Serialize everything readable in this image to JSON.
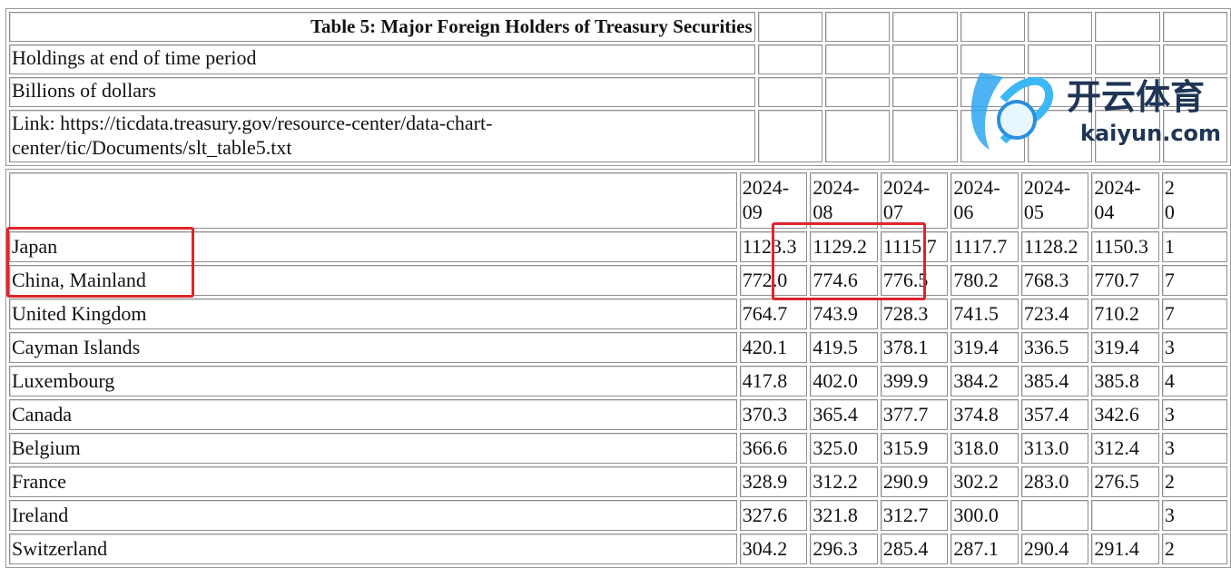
{
  "title": "Table 5: Major Foreign Holders of Treasury Securities",
  "meta": [
    "Holdings at end of time period",
    "Billions of dollars",
    "Link: https://ticdata.treasury.gov/resource-center/data-chart-center/tic/Documents/slt_table5.txt"
  ],
  "columns": [
    "2024-09",
    "2024-08",
    "2024-07",
    "2024-06",
    "2024-05",
    "2024-04",
    "20"
  ],
  "rows": [
    {
      "country": "Japan",
      "values": [
        "1123.3",
        "1129.2",
        "1115.7",
        "1117.7",
        "1128.2",
        "1150.3",
        "1"
      ]
    },
    {
      "country": "China, Mainland",
      "values": [
        "772.0",
        "774.6",
        "776.5",
        "780.2",
        "768.3",
        "770.7",
        "7"
      ]
    },
    {
      "country": "United Kingdom",
      "values": [
        "764.7",
        "743.9",
        "728.3",
        "741.5",
        "723.4",
        "710.2",
        "7"
      ]
    },
    {
      "country": "Cayman Islands",
      "values": [
        "420.1",
        "419.5",
        "378.1",
        "319.4",
        "336.5",
        "319.4",
        "3"
      ]
    },
    {
      "country": "Luxembourg",
      "values": [
        "417.8",
        "402.0",
        "399.9",
        "384.2",
        "385.4",
        "385.8",
        "4"
      ]
    },
    {
      "country": "Canada",
      "values": [
        "370.3",
        "365.4",
        "377.7",
        "374.8",
        "357.4",
        "342.6",
        "3"
      ]
    },
    {
      "country": "Belgium",
      "values": [
        "366.6",
        "325.0",
        "315.9",
        "318.0",
        "313.0",
        "312.4",
        "3"
      ]
    },
    {
      "country": "France",
      "values": [
        "328.9",
        "312.2",
        "290.9",
        "302.2",
        "283.0",
        "276.5",
        "2"
      ]
    },
    {
      "country": "Ireland",
      "values": [
        "327.6",
        "321.8",
        "312.7",
        "300.0",
        "",
        "",
        "3"
      ]
    },
    {
      "country": "Switzerland",
      "values": [
        "304.2",
        "296.3",
        "285.4",
        "287.1",
        "290.4",
        "291.4",
        "2"
      ]
    }
  ],
  "highlight_color": "#e0242a",
  "watermark": {
    "brand": "开云体育",
    "site": "kaiyun.com"
  }
}
